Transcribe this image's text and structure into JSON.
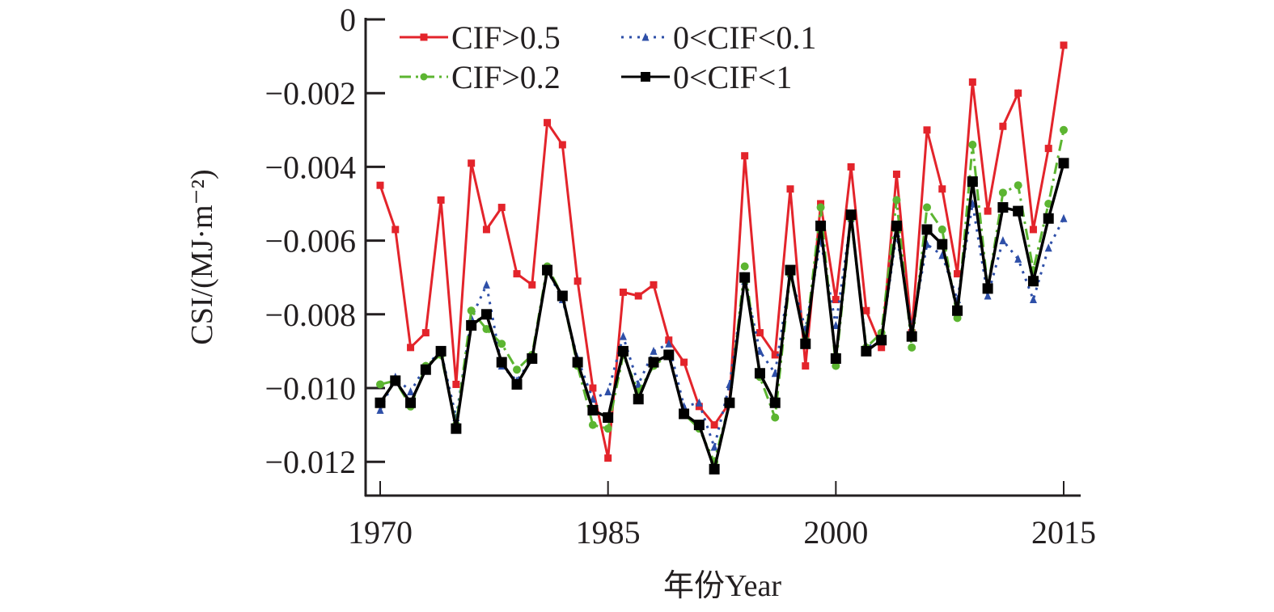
{
  "chart_data": {
    "type": "line",
    "title": "",
    "xlabel": "年份Year",
    "ylabel": "CSI/(MJ·m⁻²)",
    "xlim": [
      1970,
      2015
    ],
    "ylim": [
      -0.013,
      0
    ],
    "xticks": [
      "1970",
      "1985",
      "2000",
      "2015"
    ],
    "xtick_values": [
      1970,
      1985,
      2000,
      2015
    ],
    "yticks": [
      "0",
      "−0.002",
      "−0.004",
      "−0.006",
      "−0.008",
      "−0.010",
      "−0.012"
    ],
    "ytick_values": [
      0,
      -0.002,
      -0.004,
      -0.006,
      -0.008,
      -0.01,
      -0.012
    ],
    "grid": false,
    "legend_position": "top-left",
    "x": [
      1970,
      1971,
      1972,
      1973,
      1974,
      1975,
      1976,
      1977,
      1978,
      1979,
      1980,
      1981,
      1982,
      1983,
      1984,
      1985,
      1986,
      1987,
      1988,
      1989,
      1990,
      1991,
      1992,
      1993,
      1994,
      1995,
      1996,
      1997,
      1998,
      1999,
      2000,
      2001,
      2002,
      2003,
      2004,
      2005,
      2006,
      2007,
      2008,
      2009,
      2010,
      2011,
      2012,
      2013,
      2014,
      2015
    ],
    "series": [
      {
        "name": "CIF>0.5",
        "color": "#e3242b",
        "dash": "solid",
        "marker": "square",
        "values": [
          -0.0045,
          -0.0057,
          -0.0089,
          -0.0085,
          -0.0049,
          -0.0099,
          -0.0039,
          -0.0057,
          -0.0051,
          -0.0069,
          -0.0072,
          -0.0028,
          -0.0034,
          -0.0071,
          -0.01,
          -0.0119,
          -0.0074,
          -0.0075,
          -0.0072,
          -0.0087,
          -0.0093,
          -0.0105,
          -0.011,
          -0.0104,
          -0.0037,
          -0.0085,
          -0.0091,
          -0.0046,
          -0.0094,
          -0.005,
          -0.0076,
          -0.004,
          -0.0079,
          -0.0089,
          -0.0042,
          -0.0085,
          -0.003,
          -0.0046,
          -0.0069,
          -0.0017,
          -0.0052,
          -0.0029,
          -0.002,
          -0.0057,
          -0.0035,
          -0.0007
        ]
      },
      {
        "name": "0<CIF<0.1",
        "color": "#2e4fa8",
        "dash": "dotted",
        "marker": "triangle",
        "values": [
          -0.0106,
          -0.0097,
          -0.0101,
          -0.0094,
          -0.009,
          -0.0108,
          -0.0081,
          -0.0072,
          -0.0094,
          -0.0098,
          -0.0092,
          -0.0068,
          -0.0076,
          -0.0092,
          -0.0103,
          -0.0101,
          -0.0086,
          -0.0099,
          -0.009,
          -0.0088,
          -0.0105,
          -0.0104,
          -0.0116,
          -0.0099,
          -0.0071,
          -0.009,
          -0.0096,
          -0.0069,
          -0.0084,
          -0.006,
          -0.0083,
          -0.0054,
          -0.0089,
          -0.0087,
          -0.0058,
          -0.0084,
          -0.0061,
          -0.0064,
          -0.0076,
          -0.005,
          -0.0075,
          -0.006,
          -0.0065,
          -0.0076,
          -0.0062,
          -0.0054
        ]
      },
      {
        "name": "CIF>0.2",
        "color": "#5cb531",
        "dash": "dashdot",
        "marker": "circle",
        "values": [
          -0.0099,
          -0.0098,
          -0.0105,
          -0.0094,
          -0.0091,
          -0.011,
          -0.0079,
          -0.0084,
          -0.0088,
          -0.0095,
          -0.0091,
          -0.0067,
          -0.0075,
          -0.0094,
          -0.011,
          -0.0111,
          -0.0091,
          -0.0101,
          -0.0094,
          -0.0091,
          -0.0107,
          -0.0111,
          -0.012,
          -0.0104,
          -0.0067,
          -0.0097,
          -0.0108,
          -0.0069,
          -0.0087,
          -0.0051,
          -0.0094,
          -0.0054,
          -0.0089,
          -0.0085,
          -0.0049,
          -0.0089,
          -0.0051,
          -0.0057,
          -0.0081,
          -0.0034,
          -0.0073,
          -0.0047,
          -0.0045,
          -0.0068,
          -0.005,
          -0.003
        ]
      },
      {
        "name": "0<CIF<1",
        "color": "#000000",
        "dash": "solid",
        "marker": "square",
        "values": [
          -0.0104,
          -0.0098,
          -0.0104,
          -0.0095,
          -0.009,
          -0.0111,
          -0.0083,
          -0.008,
          -0.0093,
          -0.0099,
          -0.0092,
          -0.0068,
          -0.0075,
          -0.0093,
          -0.0106,
          -0.0108,
          -0.009,
          -0.0103,
          -0.0093,
          -0.0091,
          -0.0107,
          -0.011,
          -0.0122,
          -0.0104,
          -0.007,
          -0.0096,
          -0.0104,
          -0.0068,
          -0.0088,
          -0.0056,
          -0.0092,
          -0.0053,
          -0.009,
          -0.0087,
          -0.0056,
          -0.0086,
          -0.0057,
          -0.0061,
          -0.0079,
          -0.0044,
          -0.0073,
          -0.0051,
          -0.0052,
          -0.0071,
          -0.0054,
          -0.0039
        ]
      }
    ],
    "legend": [
      {
        "label": "CIF>0.5",
        "series": 0
      },
      {
        "label": "0<CIF<0.1",
        "series": 1
      },
      {
        "label": "CIF>0.2",
        "series": 2
      },
      {
        "label": "0<CIF<1",
        "series": 3
      }
    ]
  }
}
